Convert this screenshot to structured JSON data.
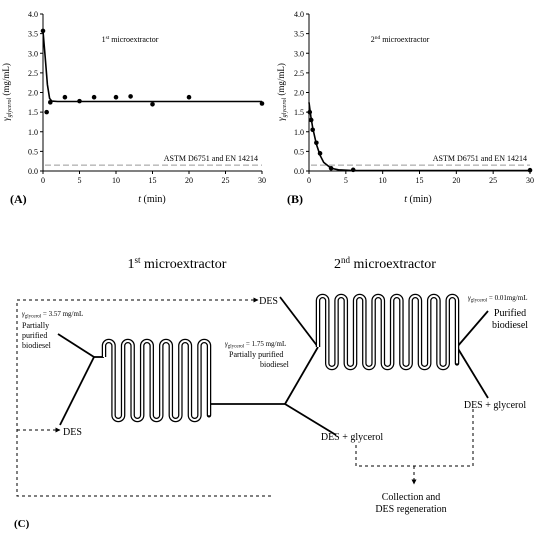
{
  "chart_data": [
    {
      "type": "scatter",
      "panel_label": "(A)",
      "annotation": "1st microextractor",
      "annotation_base": "1",
      "annotation_sup": "st",
      "annotation_rest": " microextractor",
      "ylabel": "γglycerol (mg/mL)",
      "ylabel_main": "γ",
      "ylabel_sub": "glycerol",
      "ylabel_unit": " (mg/mL)",
      "xlabel": "t (min)",
      "xlabel_t": "t",
      "xlabel_unit": " (min)",
      "xlim": [
        0,
        30
      ],
      "ylim": [
        0,
        4
      ],
      "xticks": [
        "0",
        "5",
        "10",
        "15",
        "20",
        "25",
        "30"
      ],
      "yticks": [
        "0.0",
        "0.5",
        "1.0",
        "1.5",
        "2.0",
        "2.5",
        "3.0",
        "3.5",
        "4.0"
      ],
      "points": {
        "x": [
          0,
          0.5,
          1,
          3,
          5,
          7,
          10,
          12,
          15,
          20,
          30
        ],
        "y": [
          3.57,
          1.5,
          1.75,
          1.88,
          1.78,
          1.88,
          1.88,
          1.9,
          1.7,
          1.88,
          1.72
        ]
      },
      "fit": {
        "x": [
          0,
          0.3,
          0.6,
          0.9,
          1.2,
          2,
          30
        ],
        "y": [
          3.57,
          2.9,
          2.2,
          1.85,
          1.78,
          1.77,
          1.77
        ]
      },
      "threshold": {
        "y": 0.15,
        "label": "ASTM D6751 and EN 14214"
      }
    },
    {
      "type": "scatter",
      "panel_label": "(B)",
      "annotation": "2nd microextractor",
      "annotation_base": "2",
      "annotation_sup": "nd",
      "annotation_rest": " microextractor",
      "ylabel": "γglycerol (mg/mL)",
      "ylabel_main": "γ",
      "ylabel_sub": "glycerol",
      "ylabel_unit": " (mg/mL)",
      "xlabel": "t (min)",
      "xlabel_t": "t",
      "xlabel_unit": " (min)",
      "xlim": [
        0,
        30
      ],
      "ylim": [
        0,
        4
      ],
      "xticks": [
        "0",
        "5",
        "10",
        "15",
        "20",
        "25",
        "30"
      ],
      "yticks": [
        "0.0",
        "0.5",
        "1.0",
        "1.5",
        "2.0",
        "2.5",
        "3.0",
        "3.5",
        "4.0"
      ],
      "points": {
        "x": [
          0.1,
          0.3,
          0.5,
          1,
          1.5,
          3,
          6,
          30
        ],
        "y": [
          1.5,
          1.3,
          1.05,
          0.72,
          0.45,
          0.07,
          0.03,
          0.02
        ]
      },
      "fit": {
        "x": [
          0,
          0.25,
          0.5,
          1,
          1.5,
          2,
          3,
          4,
          6,
          30
        ],
        "y": [
          1.75,
          1.4,
          1.1,
          0.68,
          0.4,
          0.22,
          0.07,
          0.03,
          0.01,
          0.01
        ]
      },
      "threshold": {
        "y": 0.15,
        "label": "ASTM D6751 and EN 14214"
      }
    }
  ],
  "diagram": {
    "panel_label": "(C)",
    "title1_base": "1",
    "title1_sup": "st",
    "title1_rest": " microextractor",
    "title2_base": "2",
    "title2_sup": "nd",
    "title2_rest": " microextractor",
    "des_top": "DES",
    "des_left": "DES",
    "gamma_left_main": "γ",
    "gamma_left_sub": "glycerol",
    "gamma_left_val": " = 3.57 mg/mL",
    "partially_left": [
      "Partially",
      "purified",
      "biodiesel"
    ],
    "gamma_mid_main": "γ",
    "gamma_mid_sub": "glycerol",
    "gamma_mid_val": " = 1.75 mg/mL",
    "partially_mid": [
      "Partially purified",
      "biodiesel"
    ],
    "gamma_right_main": "γ",
    "gamma_right_sub": "glycerol",
    "gamma_right_val": " = 0.01mg/mL",
    "purified": [
      "Purified",
      "biodiesel"
    ],
    "purified_color": "#6b8e23",
    "des_glycerol_1": "DES + glycerol",
    "des_glycerol_2": "DES + glycerol",
    "collection": [
      "Collection and",
      "DES regeneration"
    ]
  }
}
